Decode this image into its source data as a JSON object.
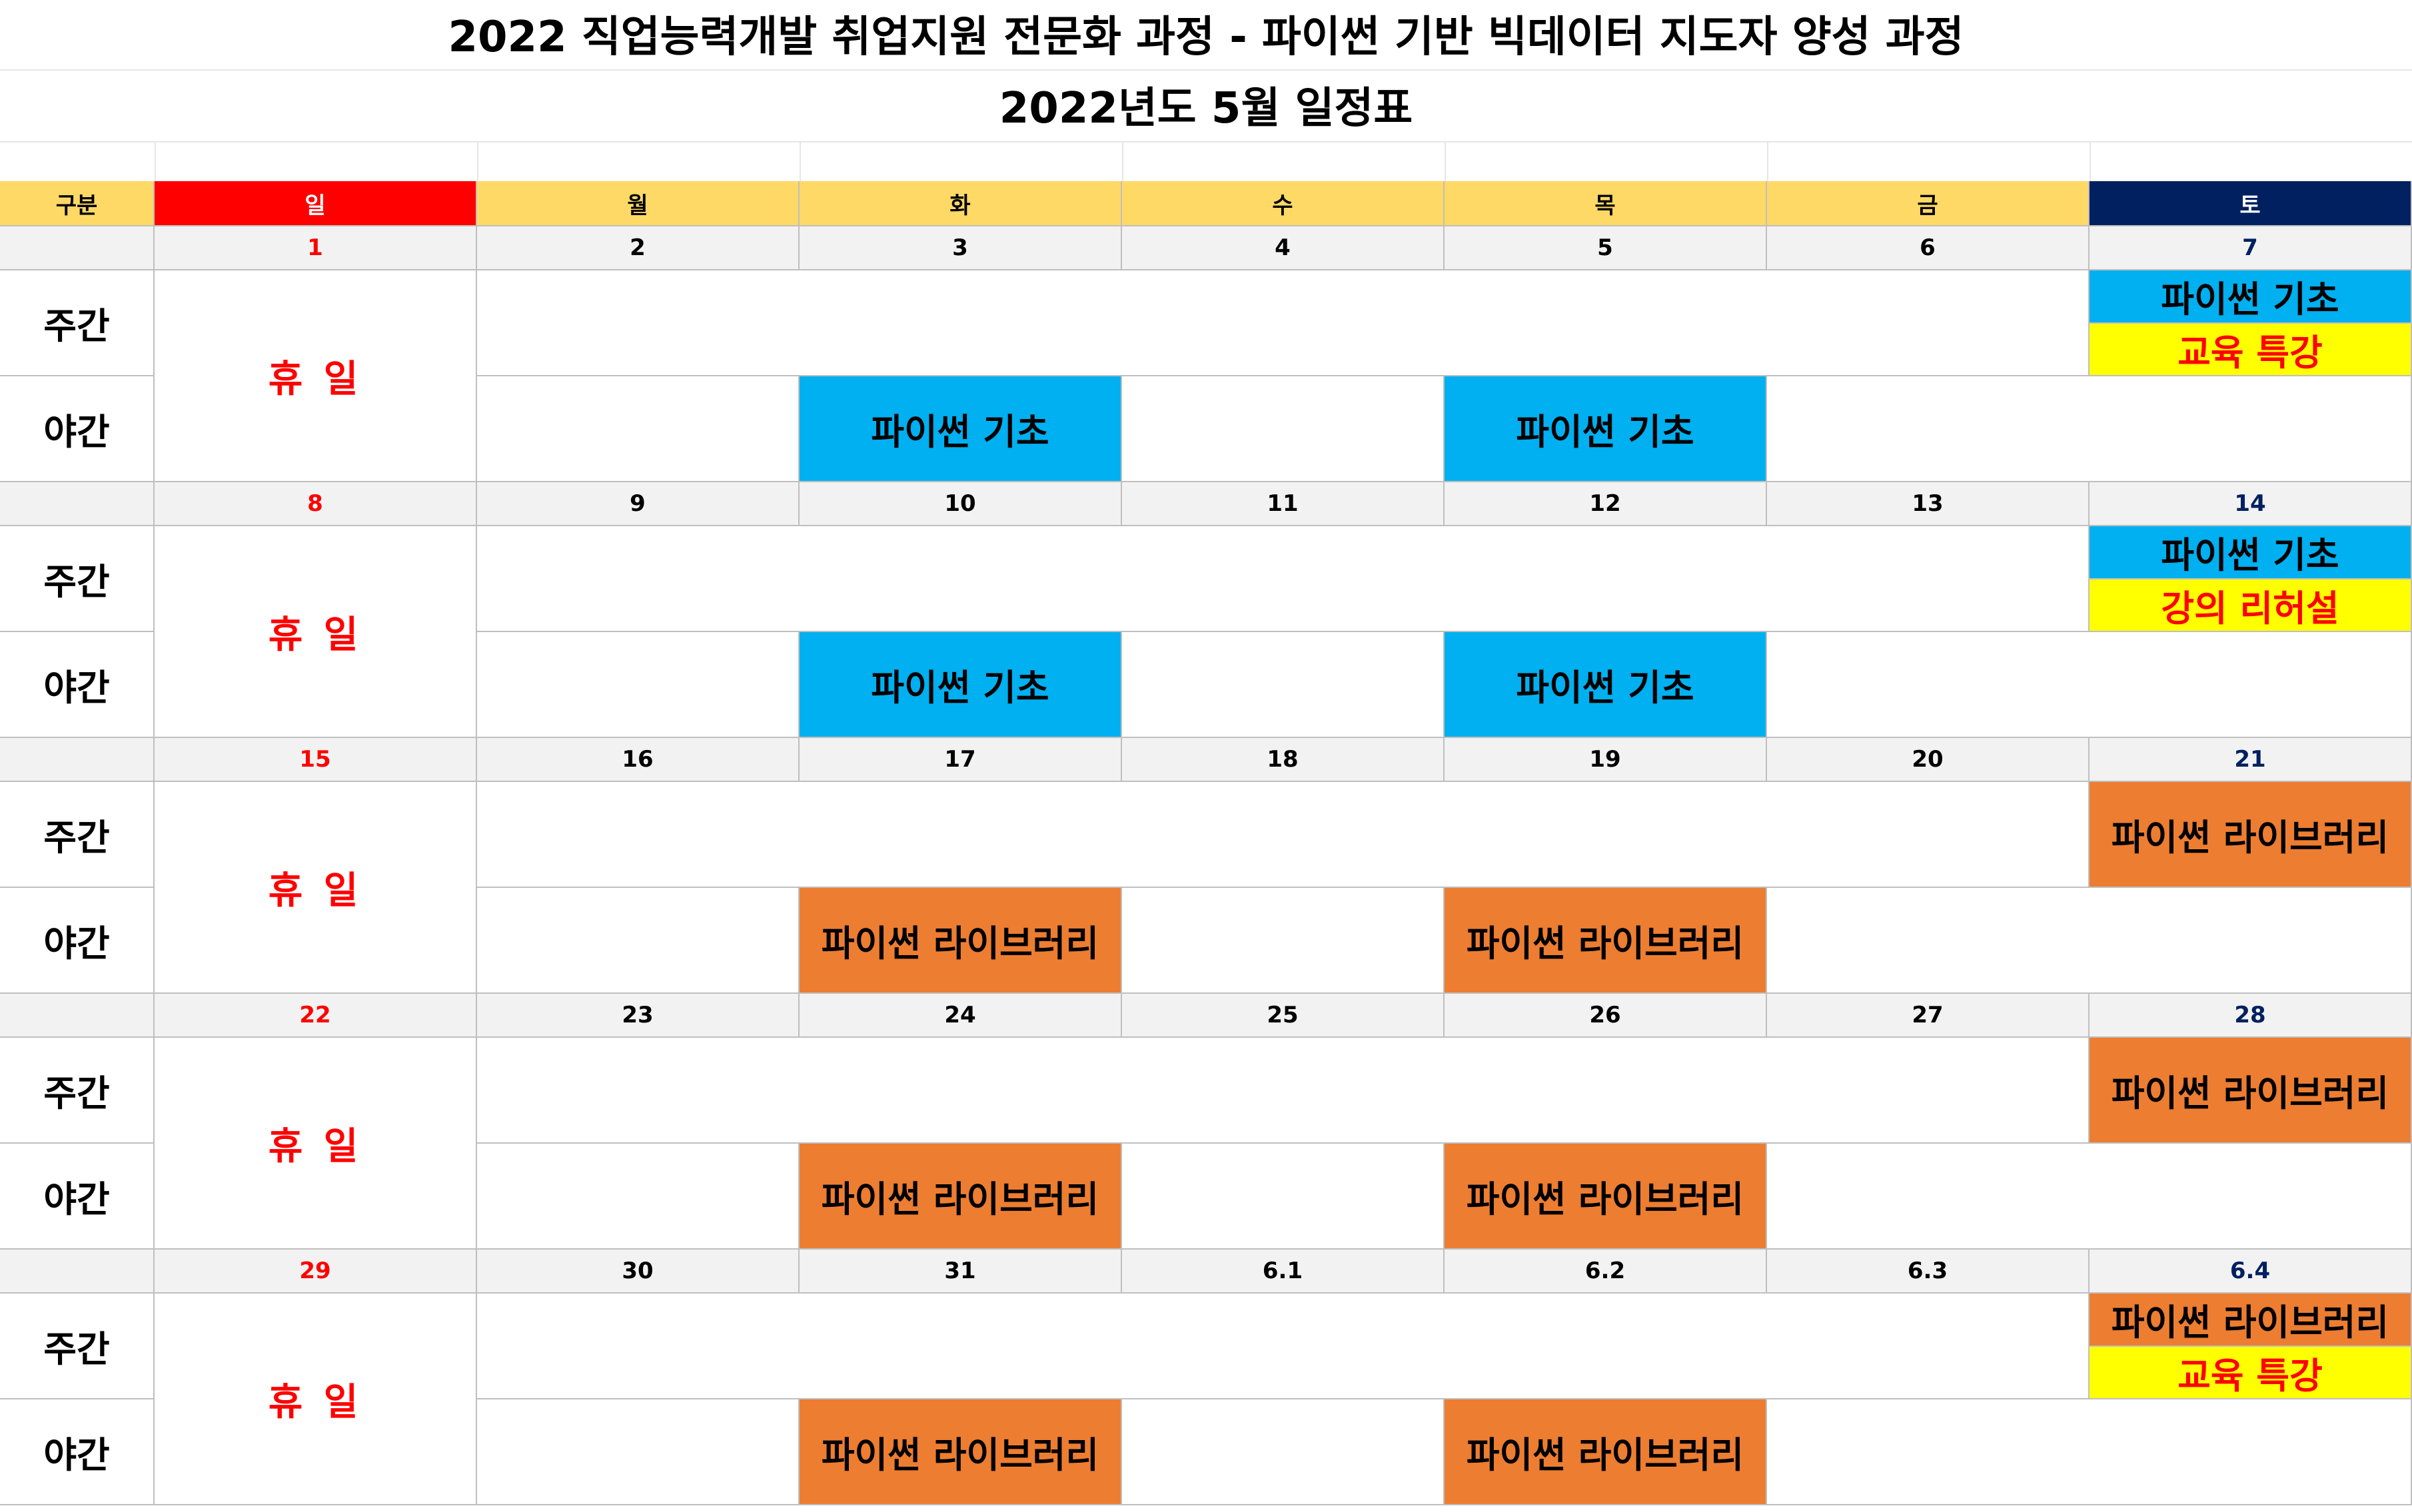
{
  "title": "2022 직업능력개발 취업지원 전문화 과정 - 파이썬 기반 빅데이터 지도자 양성 과정",
  "subtitle": "2022년도 5월 일정표",
  "header": {
    "division": "구분",
    "days": [
      "일",
      "월",
      "화",
      "수",
      "목",
      "금",
      "토"
    ]
  },
  "colors": {
    "sunday_header": "#ff0000",
    "weekday_header": "#ffd966",
    "saturday_header": "#002060",
    "sunday_date": "#ff0000",
    "saturday_date": "#002060",
    "date_row_bg": "#f2f2f2",
    "course_basic": "#00b0f0",
    "course_library": "#ed7d31",
    "special_event": "#ffff00"
  },
  "row_labels": {
    "day": "주간",
    "night": "야간"
  },
  "rest_label": "휴 일",
  "weeks": [
    {
      "dates": [
        "1",
        "2",
        "3",
        "4",
        "5",
        "6",
        "7"
      ],
      "saturday_day": [
        {
          "text": "파이썬 기초",
          "style": "blue"
        },
        {
          "text": "교육 특강",
          "style": "yellow"
        }
      ],
      "night": {
        "tue": "파이썬 기초",
        "thu": "파이썬 기초",
        "style": "blue"
      }
    },
    {
      "dates": [
        "8",
        "9",
        "10",
        "11",
        "12",
        "13",
        "14"
      ],
      "saturday_day": [
        {
          "text": "파이썬 기초",
          "style": "blue"
        },
        {
          "text": "강의 리허설",
          "style": "yellow"
        }
      ],
      "night": {
        "tue": "파이썬 기초",
        "thu": "파이썬 기초",
        "style": "blue"
      }
    },
    {
      "dates": [
        "15",
        "16",
        "17",
        "18",
        "19",
        "20",
        "21"
      ],
      "saturday_day": [
        {
          "text": "파이썬 라이브러리",
          "style": "orange"
        }
      ],
      "night": {
        "tue": "파이썬 라이브러리",
        "thu": "파이썬 라이브러리",
        "style": "orange"
      }
    },
    {
      "dates": [
        "22",
        "23",
        "24",
        "25",
        "26",
        "27",
        "28"
      ],
      "saturday_day": [
        {
          "text": "파이썬 라이브러리",
          "style": "orange"
        }
      ],
      "night": {
        "tue": "파이썬 라이브러리",
        "thu": "파이썬 라이브러리",
        "style": "orange"
      }
    },
    {
      "dates": [
        "29",
        "30",
        "31",
        "6.1",
        "6.2",
        "6.3",
        "6.4"
      ],
      "saturday_day": [
        {
          "text": "파이썬 라이브러리",
          "style": "orange"
        },
        {
          "text": "교육 특강",
          "style": "yellow"
        }
      ],
      "night": {
        "tue": "파이썬 라이브러리",
        "thu": "파이썬 라이브러리",
        "style": "orange"
      }
    }
  ]
}
